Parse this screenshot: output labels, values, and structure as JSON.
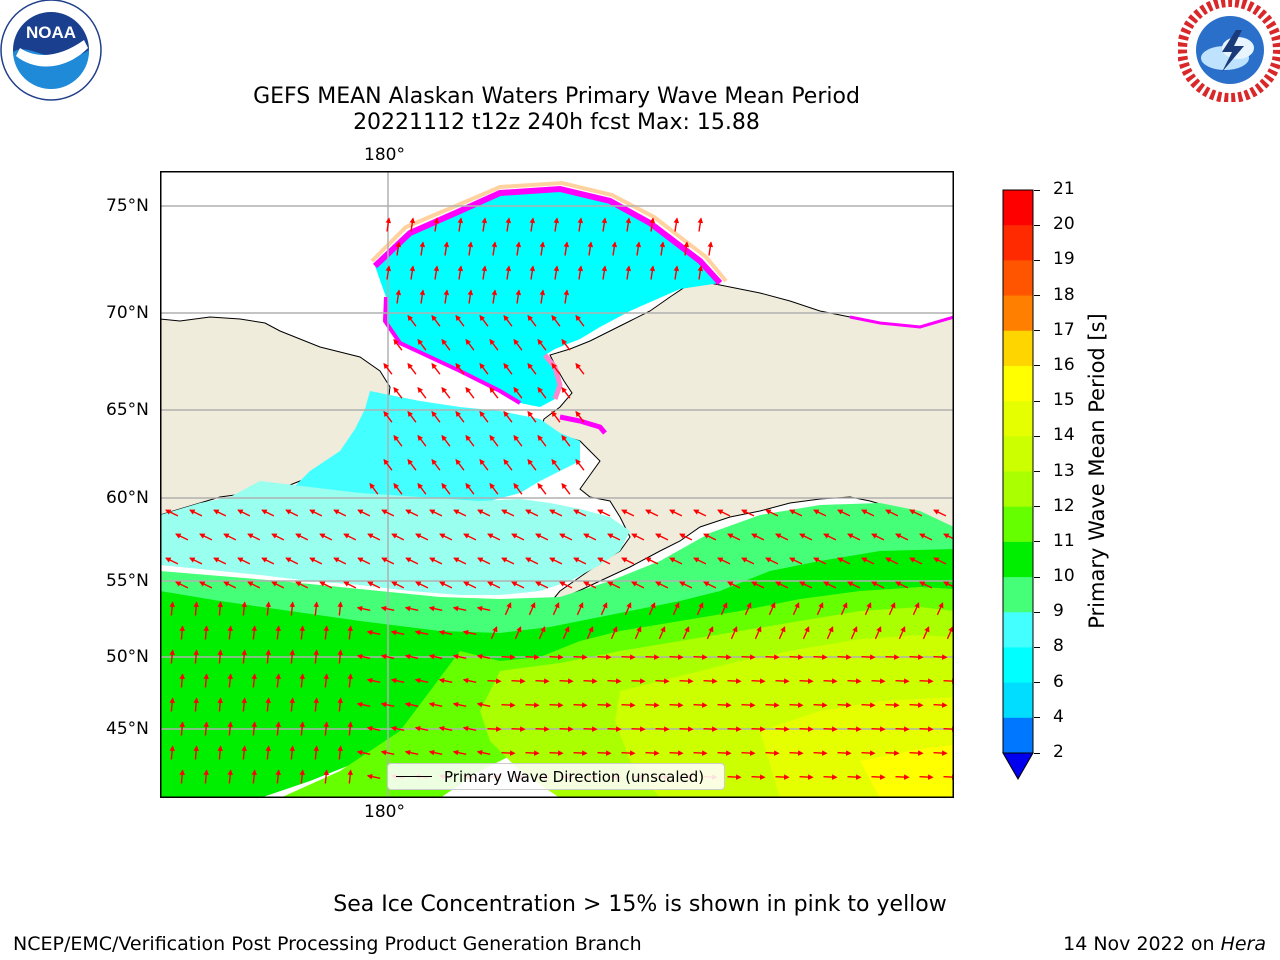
{
  "title": {
    "line1": "GEFS MEAN Alaskan Waters Primary Wave Mean Period",
    "line2": "20221112 t12z 240h fcst   Max: 15.88"
  },
  "logos": {
    "left": {
      "name": "NOAA",
      "text": "NOAA",
      "ring_text": "NATIONAL OCEANIC AND ATMOSPHERIC ADMINISTRATION · U.S. DEPARTMENT OF COMMERCE"
    },
    "right": {
      "name": "National Weather Service",
      "ring_text": "NATIONAL WEATHER SERVICE"
    }
  },
  "map": {
    "lon_labels": [
      "180°"
    ],
    "lat_labels": [
      "75°N",
      "70°N",
      "65°N",
      "60°N",
      "55°N",
      "50°N",
      "45°N"
    ],
    "lat_values": [
      75,
      70,
      65,
      60,
      55,
      50,
      45
    ],
    "legend_label": "Primary Wave Direction (unscaled)",
    "colors": {
      "land": "#efecdc",
      "arrow": "#ff0000",
      "grid": "#b0b0b0",
      "ice": [
        "#ff00ff",
        "#ff88cc",
        "#ffd2a0",
        "#ffff00"
      ]
    }
  },
  "colorbar": {
    "label": "Primary Wave Mean Period [s]",
    "ticks": [
      "21",
      "20",
      "19",
      "18",
      "17",
      "16",
      "15",
      "14",
      "13",
      "12",
      "11",
      "10",
      "9",
      "8",
      "6",
      "4",
      "2"
    ],
    "colors_top_to_bottom": [
      "#ff0000",
      "#ff2a00",
      "#ff5500",
      "#ff8000",
      "#ffaa00",
      "#ffd500",
      "#ffff00",
      "#e5ff00",
      "#ccff00",
      "#aaff00",
      "#66ff00",
      "#00ee00",
      "#44ff77",
      "#99ffee",
      "#44ffff",
      "#00ffff",
      "#00ddff",
      "#0077ff",
      "#0000ee"
    ],
    "extend": "min"
  },
  "note": "Sea Ice Concentration > 15% is shown in pink to yellow",
  "footer": {
    "left": "NCEP/EMC/Verification Post Processing Product Generation Branch",
    "right_prefix": "14 Nov 2022 on ",
    "right_italic": "Hera"
  }
}
